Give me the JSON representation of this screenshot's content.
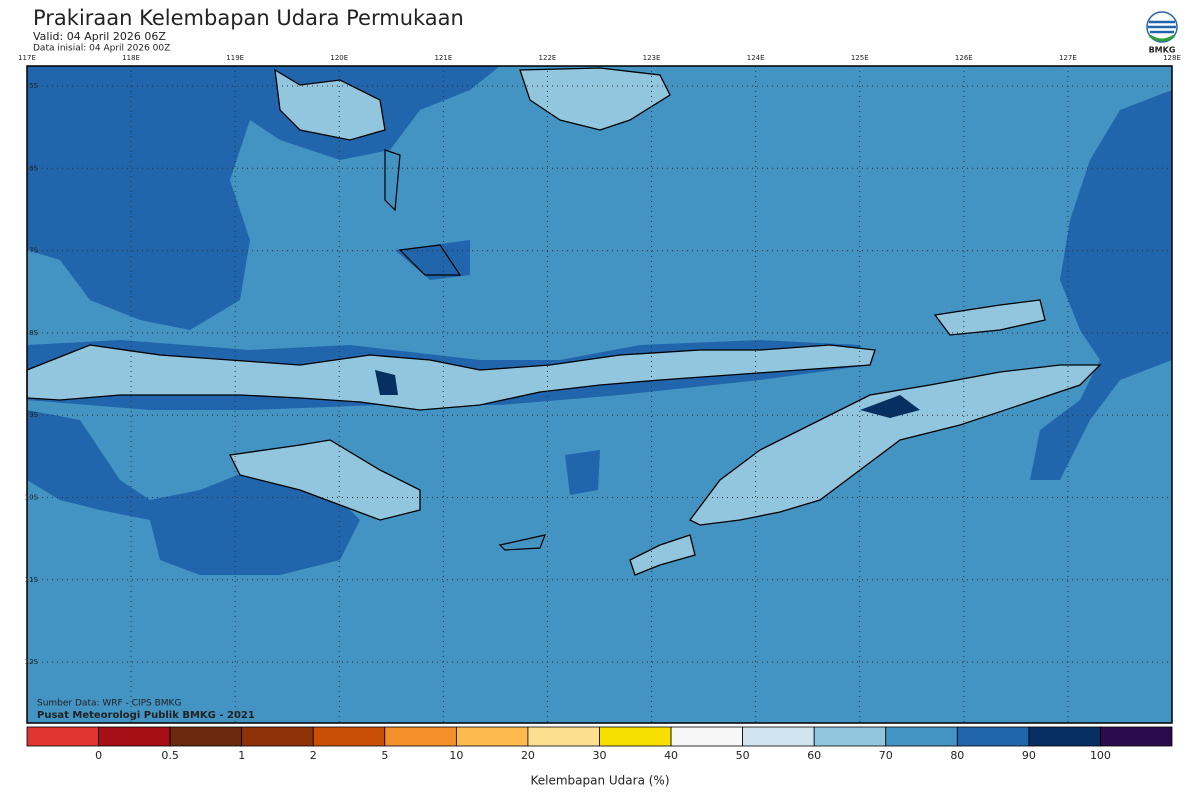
{
  "header": {
    "title": "Prakiraan Kelembapan Udara Permukaan",
    "valid": "Valid: 04 April 2026 06Z",
    "init": "Data inisial: 04 April 2026 00Z"
  },
  "logo": {
    "text": "BMKG"
  },
  "map": {
    "longitude_labels": [
      "117E",
      "118E",
      "119E",
      "120E",
      "121E",
      "122E",
      "123E",
      "124E",
      "125E",
      "126E",
      "127E",
      "128E"
    ],
    "latitude_labels": [
      "5S",
      "6S",
      "7S",
      "8S",
      "9S",
      "10S",
      "11S",
      "12S"
    ],
    "source": "Sumber Data: WRF - CIPS BMKG",
    "credit": "Pusat Meteorologi Publik BMKG - 2021"
  },
  "colorbar": {
    "colors": [
      "#e03530",
      "#a50f15",
      "#6b2a0e",
      "#8f320a",
      "#c94f06",
      "#f4902a",
      "#fdbb4f",
      "#fde08f",
      "#f7df00",
      "#f7f7f7",
      "#d1e5f0",
      "#92c5de",
      "#4393c3",
      "#2166ac",
      "#053061",
      "#2d0a4b"
    ],
    "labels": [
      0,
      0.5,
      1,
      2,
      5,
      10,
      20,
      30,
      40,
      50,
      60,
      70,
      80,
      90,
      100
    ],
    "title": "Kelembapan Udara (%)"
  }
}
